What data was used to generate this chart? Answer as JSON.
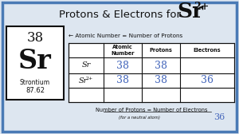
{
  "title_text": "Protons & Electrons for",
  "ion_symbol": "Sr",
  "ion_superscript": "2+",
  "bg_color": "#dde6f0",
  "border_color": "#4a7ab5",
  "element_number": "38",
  "element_symbol": "Sr",
  "element_name": "Strontium",
  "element_mass": "87.62",
  "arrow_label": "← Atomic Number = Number of Protons",
  "col0_header": "",
  "col1_header": "Atomic\nNumber",
  "col2_header": "Protons",
  "col3_header": "Electrons",
  "row1_label": "Sr",
  "row2_label_base": "Sr",
  "row2_label_sup": "2+",
  "row1_atomic": "38",
  "row1_protons": "38",
  "row1_electrons": "",
  "row2_atomic": "38",
  "row2_protons": "38",
  "row2_electrons": "36",
  "bottom_note": "Number of Protons = Number of Electrons",
  "bottom_subnote": "(for a neutral atom)",
  "bottom_answer": "36",
  "white": "#ffffff",
  "black": "#111111",
  "handwriting_color": "#4466bb",
  "table_border": "#888888"
}
